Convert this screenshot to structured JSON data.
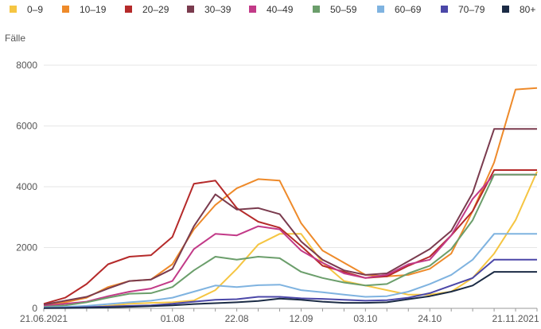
{
  "chart_data": {
    "type": "line",
    "ylabel": "Fälle",
    "ylim": [
      0,
      8000
    ],
    "yticks": [
      "0",
      "2000",
      "4000",
      "6000",
      "8000"
    ],
    "xtick_labels": [
      {
        "label": "21.06.2021",
        "index": 0
      },
      {
        "label": "01.08",
        "index": 6
      },
      {
        "label": "22.08",
        "index": 9
      },
      {
        "label": "12.09",
        "index": 12
      },
      {
        "label": "03.10",
        "index": 15
      },
      {
        "label": "24.10",
        "index": 18
      },
      {
        "label": "21.11.2021",
        "index": 22
      }
    ],
    "x": [
      "21.06",
      "28.06",
      "05.07",
      "12.07",
      "19.07",
      "26.07",
      "01.08",
      "08.08",
      "15.08",
      "22.08",
      "29.08",
      "05.09",
      "12.09",
      "19.09",
      "26.09",
      "03.10",
      "10.10",
      "17.10",
      "24.10",
      "31.10",
      "07.11",
      "14.11",
      "21.11",
      "28.11"
    ],
    "series": [
      {
        "name": "0–9",
        "color": "#f5c542",
        "values": [
          20,
          20,
          40,
          80,
          150,
          180,
          200,
          260,
          600,
          1300,
          2100,
          2450,
          2450,
          1500,
          900,
          750,
          600,
          450,
          450,
          550,
          1000,
          1800,
          2900,
          4500
        ]
      },
      {
        "name": "10–19",
        "color": "#ee8a2a",
        "values": [
          100,
          200,
          350,
          700,
          900,
          950,
          1450,
          2600,
          3400,
          3950,
          4250,
          4200,
          2800,
          1900,
          1500,
          1100,
          1050,
          1100,
          1300,
          1800,
          3200,
          4800,
          7200,
          7250
        ]
      },
      {
        "name": "20–29",
        "color": "#b52a2a",
        "values": [
          150,
          350,
          800,
          1450,
          1700,
          1750,
          2350,
          4100,
          4200,
          3300,
          2850,
          2650,
          2050,
          1400,
          1200,
          1000,
          1050,
          1400,
          1700,
          2400,
          3200,
          4550,
          4550,
          4550
        ]
      },
      {
        "name": "30–39",
        "color": "#7a3b4e",
        "values": [
          120,
          250,
          380,
          650,
          900,
          950,
          1300,
          2700,
          3750,
          3250,
          3300,
          3100,
          2200,
          1600,
          1250,
          1100,
          1150,
          1550,
          1950,
          2550,
          3800,
          5900,
          5900,
          5900
        ]
      },
      {
        "name": "40–49",
        "color": "#c23a88",
        "values": [
          80,
          150,
          220,
          400,
          550,
          650,
          900,
          1950,
          2450,
          2400,
          2700,
          2600,
          1900,
          1500,
          1150,
          1000,
          1100,
          1450,
          1600,
          2400,
          3600,
          4400,
          4400,
          4400
        ]
      },
      {
        "name": "50–59",
        "color": "#6b9e6b",
        "values": [
          50,
          100,
          200,
          350,
          480,
          500,
          700,
          1250,
          1700,
          1600,
          1700,
          1650,
          1200,
          1000,
          850,
          750,
          800,
          1150,
          1400,
          1950,
          2900,
          4400,
          4400,
          4400
        ]
      },
      {
        "name": "60–69",
        "color": "#7fb3e0",
        "values": [
          30,
          50,
          80,
          140,
          200,
          250,
          350,
          550,
          750,
          700,
          760,
          780,
          600,
          530,
          450,
          380,
          400,
          550,
          800,
          1100,
          1600,
          2450,
          2450,
          2450
        ]
      },
      {
        "name": "70–79",
        "color": "#4b47a8",
        "values": [
          10,
          20,
          40,
          60,
          80,
          100,
          150,
          220,
          280,
          300,
          380,
          380,
          330,
          310,
          280,
          250,
          270,
          350,
          500,
          750,
          1000,
          1600,
          1600,
          1600
        ]
      },
      {
        "name": "80+",
        "color": "#1b2b45",
        "values": [
          5,
          10,
          20,
          30,
          50,
          70,
          100,
          140,
          170,
          200,
          240,
          320,
          280,
          220,
          180,
          180,
          200,
          300,
          400,
          550,
          750,
          1200,
          1200,
          1200
        ]
      }
    ]
  }
}
